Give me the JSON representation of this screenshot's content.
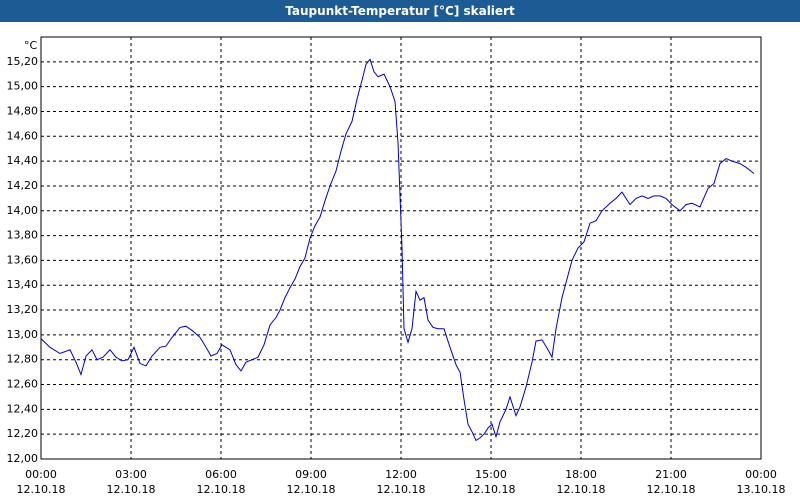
{
  "chart_data": {
    "type": "line",
    "title": "Taupunkt-Temperatur [°C] skaliert",
    "y_unit": "°C",
    "x": [
      0,
      18,
      38,
      58,
      70,
      80,
      90,
      102,
      112,
      124,
      138,
      150,
      162,
      174,
      186,
      198,
      210,
      222,
      238,
      250,
      262,
      278,
      290,
      304,
      318,
      330,
      340,
      352,
      362,
      378,
      390,
      400,
      410,
      422,
      434,
      446,
      458,
      470,
      478,
      488,
      498,
      508,
      518,
      528,
      538,
      548,
      558,
      568,
      578,
      590,
      600,
      610,
      622,
      632,
      642,
      650,
      658,
      666,
      674,
      686,
      698,
      708,
      714,
      722,
      726,
      734,
      742,
      750,
      758,
      766,
      774,
      784,
      794,
      806,
      818,
      830,
      838,
      846,
      854,
      862,
      870,
      878,
      886,
      894,
      902,
      910,
      918,
      930,
      938,
      950,
      958,
      970,
      982,
      990,
      1002,
      1014,
      1022,
      1030,
      1042,
      1054,
      1062,
      1074,
      1086,
      1098,
      1110,
      1122,
      1138,
      1150,
      1162,
      1178,
      1190,
      1202,
      1214,
      1226,
      1238,
      1250,
      1262,
      1278,
      1290,
      1302,
      1318,
      1334,
      1346,
      1358,
      1370,
      1382,
      1398,
      1410,
      1426
    ],
    "series": [
      {
        "name": "Taupunkt-Temperatur",
        "color": "#0000c0",
        "values": [
          12.97,
          12.9,
          12.85,
          12.88,
          12.78,
          12.68,
          12.83,
          12.88,
          12.8,
          12.82,
          12.88,
          12.82,
          12.79,
          12.8,
          12.9,
          12.77,
          12.75,
          12.83,
          12.9,
          12.91,
          12.98,
          13.06,
          13.07,
          13.03,
          12.98,
          12.9,
          12.83,
          12.85,
          12.92,
          12.88,
          12.76,
          12.71,
          12.78,
          12.8,
          12.82,
          12.92,
          13.08,
          13.14,
          13.2,
          13.3,
          13.38,
          13.45,
          13.55,
          13.62,
          13.78,
          13.88,
          13.95,
          14.08,
          14.2,
          14.32,
          14.48,
          14.62,
          14.72,
          14.9,
          15.05,
          15.18,
          15.22,
          15.12,
          15.08,
          15.1,
          15.0,
          14.88,
          14.55,
          13.7,
          13.05,
          12.94,
          13.05,
          13.35,
          13.28,
          13.3,
          13.12,
          13.06,
          13.05,
          13.05,
          12.9,
          12.76,
          12.7,
          12.48,
          12.28,
          12.22,
          12.15,
          12.17,
          12.2,
          12.25,
          12.28,
          12.18,
          12.3,
          12.4,
          12.5,
          12.35,
          12.42,
          12.58,
          12.78,
          12.95,
          12.96,
          12.88,
          12.82,
          13.05,
          13.3,
          13.48,
          13.6,
          13.7,
          13.75,
          13.9,
          13.92,
          14.0,
          14.06,
          14.1,
          14.15,
          14.05,
          14.1,
          14.12,
          14.1,
          14.12,
          14.12,
          14.1,
          14.05,
          14.0,
          14.05,
          14.06,
          14.03,
          14.18,
          14.22,
          14.38,
          14.42,
          14.4,
          14.38,
          14.35,
          14.3
        ]
      }
    ],
    "xlim": [
      0,
      1440
    ],
    "xticks": [
      {
        "value": 0,
        "label": "00:00",
        "date": "12.10.18"
      },
      {
        "value": 180,
        "label": "03:00",
        "date": "12.10.18"
      },
      {
        "value": 360,
        "label": "06:00",
        "date": "12.10.18"
      },
      {
        "value": 540,
        "label": "09:00",
        "date": "12.10.18"
      },
      {
        "value": 720,
        "label": "12:00",
        "date": "12.10.18"
      },
      {
        "value": 900,
        "label": "15:00",
        "date": "12.10.18"
      },
      {
        "value": 1080,
        "label": "18:00",
        "date": "12.10.18"
      },
      {
        "value": 1260,
        "label": "21:00",
        "date": "12.10.18"
      },
      {
        "value": 1440,
        "label": "00:00",
        "date": "13.10.18"
      }
    ],
    "ylim": [
      12,
      15.4
    ],
    "yticks": [
      {
        "value": 12,
        "label": "12,00"
      },
      {
        "value": 12.2,
        "label": "12,20"
      },
      {
        "value": 12.4,
        "label": "12,40"
      },
      {
        "value": 12.6,
        "label": "12,60"
      },
      {
        "value": 12.8,
        "label": "12,80"
      },
      {
        "value": 13,
        "label": "13,00"
      },
      {
        "value": 13.2,
        "label": "13,20"
      },
      {
        "value": 13.4,
        "label": "13,40"
      },
      {
        "value": 13.6,
        "label": "13,60"
      },
      {
        "value": 13.8,
        "label": "13,80"
      },
      {
        "value": 14,
        "label": "14,00"
      },
      {
        "value": 14.2,
        "label": "14,20"
      },
      {
        "value": 14.4,
        "label": "14,40"
      },
      {
        "value": 14.6,
        "label": "14,60"
      },
      {
        "value": 14.8,
        "label": "14,80"
      },
      {
        "value": 15,
        "label": "15,00"
      },
      {
        "value": 15.2,
        "label": "15,20"
      }
    ],
    "grid": true
  }
}
